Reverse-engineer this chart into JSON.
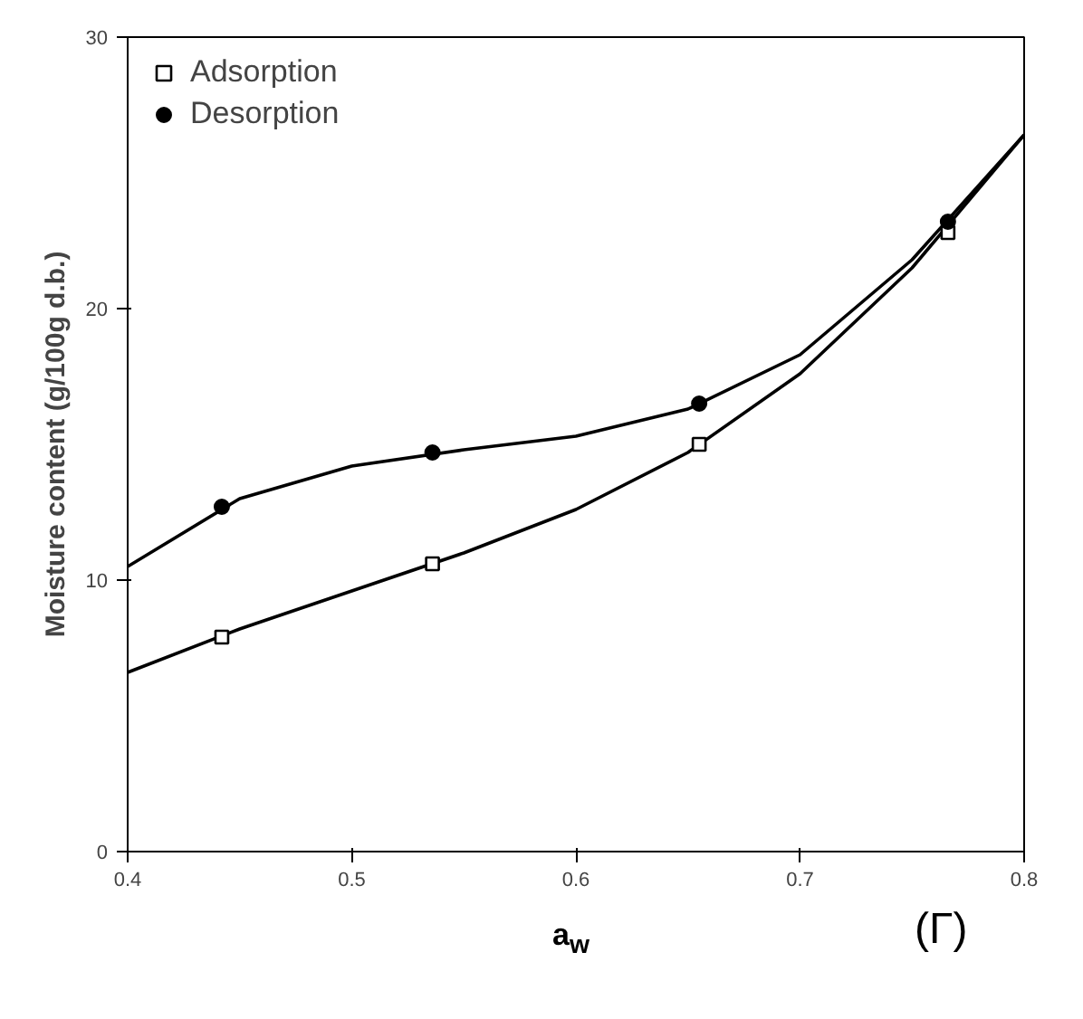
{
  "chart_data": {
    "type": "scatter",
    "xlabel": "a$_{w}$",
    "ylabel": "Moisture content (g/100g d.b.)",
    "xlim": [
      0.4,
      0.8
    ],
    "ylim": [
      0,
      30
    ],
    "xticks": [
      {
        "value": 0.4,
        "label": "0.4"
      },
      {
        "value": 0.5,
        "label": "0.5"
      },
      {
        "value": 0.6,
        "label": "0.6"
      },
      {
        "value": 0.7,
        "label": "0.7"
      },
      {
        "value": 0.8,
        "label": "0.8"
      }
    ],
    "yticks": [
      0,
      10,
      20,
      30
    ],
    "grid": false,
    "legend": "top left",
    "annotations": [
      "(Γ)"
    ],
    "series": [
      {
        "name": "Adsorption",
        "color": "#000000",
        "marker": "square",
        "x": [
          0.442,
          0.536,
          0.655,
          0.766
        ],
        "values": [
          7.9,
          10.6,
          15.0,
          22.8
        ]
      },
      {
        "name": "Desorption",
        "color": "#000000",
        "marker": "circle",
        "x": [
          0.442,
          0.536,
          0.655,
          0.766
        ],
        "values": [
          12.7,
          14.7,
          16.5,
          23.2
        ]
      },
      {
        "type": "line",
        "color": "#000000",
        "marker": "none",
        "line_style": "solid",
        "x": [
          0.4,
          0.45,
          0.5,
          0.55,
          0.6,
          0.65,
          0.7,
          0.75,
          0.8
        ],
        "values": [
          6.6,
          8.2,
          9.6,
          11.0,
          12.6,
          14.7,
          17.6,
          21.5,
          26.4
        ]
      },
      {
        "type": "line",
        "color": "#000000",
        "marker": "none",
        "line_style": "solid",
        "x": [
          0.4,
          0.45,
          0.5,
          0.55,
          0.6,
          0.65,
          0.7,
          0.75,
          0.8
        ],
        "values": [
          10.5,
          13.0,
          14.2,
          14.8,
          15.3,
          16.3,
          18.3,
          21.8,
          26.4
        ]
      }
    ]
  }
}
